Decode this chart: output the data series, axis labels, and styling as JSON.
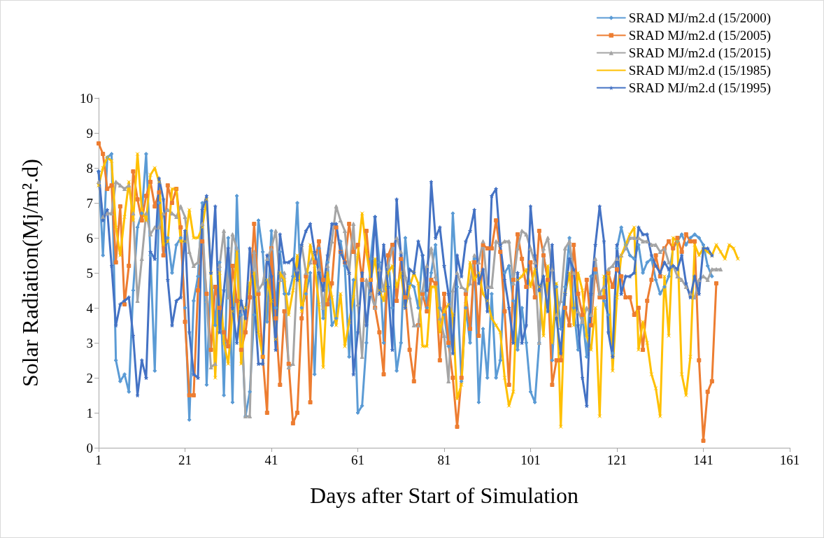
{
  "chart_data": {
    "type": "line",
    "xlabel": "Days after Start of Simulation",
    "ylabel": "Solar Radiation(Mj/m².d)",
    "xlim": [
      1,
      161
    ],
    "xticks": [
      1,
      21,
      41,
      61,
      81,
      101,
      121,
      141,
      161
    ],
    "ylim": [
      0,
      10
    ],
    "yticks": [
      0,
      1,
      2,
      3,
      4,
      5,
      6,
      7,
      8,
      9,
      10
    ],
    "grid": false,
    "legend": "top right",
    "x": [
      1,
      2,
      3,
      4,
      5,
      6,
      7,
      8,
      9,
      10,
      11,
      12,
      13,
      14,
      15,
      16,
      17,
      18,
      19,
      20,
      21,
      22,
      23,
      24,
      25,
      26,
      27,
      28,
      29,
      30,
      31,
      32,
      33,
      34,
      35,
      36,
      37,
      38,
      39,
      40,
      41,
      42,
      43,
      44,
      45,
      46,
      47,
      48,
      49,
      50,
      51,
      52,
      53,
      54,
      55,
      56,
      57,
      58,
      59,
      60,
      61,
      62,
      63,
      64,
      65,
      66,
      67,
      68,
      69,
      70,
      71,
      72,
      73,
      74,
      75,
      76,
      77,
      78,
      79,
      80,
      81,
      82,
      83,
      84,
      85,
      86,
      87,
      88,
      89,
      90,
      91,
      92,
      93,
      94,
      95,
      96,
      97,
      98,
      99,
      100,
      101,
      102,
      103,
      104,
      105,
      106,
      107,
      108,
      109,
      110,
      111,
      112,
      113,
      114,
      115,
      116,
      117,
      118,
      119,
      120,
      121,
      122,
      123,
      124,
      125,
      126,
      127,
      128,
      129,
      130,
      131,
      132,
      133,
      134,
      135,
      136,
      137,
      138,
      139,
      140,
      141,
      142,
      143,
      144,
      145,
      146,
      147,
      148,
      149
    ],
    "series": [
      {
        "name": "SRAD MJ/m2.d (15/2000)",
        "color": "#5b9bd5",
        "marker": "diamond",
        "values": [
          7.9,
          5.5,
          8.3,
          8.4,
          2.5,
          1.9,
          2.1,
          1.6,
          4.5,
          6.3,
          6.7,
          8.4,
          5.5,
          2.2,
          7.0,
          5.5,
          6.0,
          5.0,
          5.8,
          6.0,
          4.0,
          0.8,
          4.2,
          4.9,
          7.0,
          1.8,
          5.0,
          3.5,
          5.3,
          1.5,
          6.0,
          1.3,
          7.2,
          3.8,
          0.9,
          1.6,
          3.8,
          6.5,
          5.6,
          3.6,
          6.2,
          4.0,
          5.6,
          4.4,
          4.4,
          4.9,
          7.0,
          4.0,
          4.4,
          5.0,
          2.1,
          5.7,
          3.7,
          5.3,
          3.5,
          3.7,
          5.9,
          5.2,
          2.6,
          4.8,
          1.0,
          1.2,
          3.0,
          5.4,
          6.6,
          5.3,
          3.0,
          5.5,
          4.0,
          2.2,
          3.0,
          6.0,
          4.7,
          4.6,
          4.0,
          5.5,
          4.0,
          5.0,
          5.8,
          4.0,
          3.8,
          2.9,
          6.7,
          4.6,
          1.9,
          4.0,
          3.0,
          5.4,
          1.3,
          3.4,
          2.0,
          4.4,
          2.0,
          2.5,
          5.0,
          5.2,
          4.2,
          2.8,
          4.0,
          3.0,
          1.6,
          1.3,
          3.0,
          5.5,
          4.8,
          2.5,
          4.6,
          3.4,
          4.6,
          6.0,
          4.0,
          2.8,
          3.8,
          2.6,
          4.9,
          5.0,
          4.4,
          4.2,
          3.8,
          2.7,
          5.7,
          6.3,
          5.8,
          5.5,
          5.4,
          5.8,
          5.0,
          5.3,
          5.4,
          4.8,
          4.4,
          4.6,
          4.9,
          5.7,
          5.9,
          6.1,
          5.8,
          6.0,
          6.1,
          6.0,
          5.8,
          5.2,
          4.9,
          null,
          null,
          null,
          null,
          null,
          null
        ]
      },
      {
        "name": "SRAD MJ/m2.d (15/2005)",
        "color": "#ed7d31",
        "marker": "square",
        "values": [
          8.7,
          8.4,
          7.4,
          7.5,
          5.3,
          6.9,
          4.1,
          5.2,
          7.9,
          7.1,
          6.5,
          7.2,
          7.6,
          6.9,
          7.3,
          5.5,
          7.5,
          7.0,
          7.4,
          6.3,
          3.6,
          1.5,
          1.5,
          4.5,
          5.9,
          4.4,
          2.8,
          4.6,
          4.0,
          3.3,
          2.9,
          5.2,
          4.2,
          2.8,
          3.3,
          4.3,
          6.4,
          4.4,
          2.6,
          1.0,
          5.7,
          3.7,
          1.8,
          3.9,
          2.4,
          0.7,
          1.0,
          3.7,
          4.9,
          1.3,
          5.3,
          5.9,
          4.8,
          4.1,
          4.7,
          6.3,
          5.6,
          5.3,
          6.4,
          5.6,
          5.8,
          4.8,
          6.2,
          4.8,
          4.0,
          3.3,
          2.1,
          5.5,
          5.8,
          4.2,
          5.4,
          4.3,
          2.8,
          1.9,
          3.5,
          4.4,
          3.9,
          4.8,
          4.7,
          2.5,
          4.4,
          3.0,
          2.0,
          0.6,
          2.0,
          4.4,
          3.4,
          5.3,
          3.2,
          5.8,
          5.7,
          5.7,
          6.5,
          5.6,
          3.9,
          1.8,
          4.8,
          6.1,
          5.4,
          4.6,
          5.3,
          4.3,
          6.2,
          5.5,
          4.8,
          1.8,
          2.5,
          2.5,
          4.0,
          3.5,
          5.8,
          4.4,
          3.8,
          4.8,
          3.5,
          5.1,
          4.3,
          4.3,
          5.0,
          4.6,
          5.1,
          4.9,
          4.3,
          4.3,
          3.8,
          4.0,
          2.8,
          4.2,
          4.8,
          5.5,
          4.9,
          5.7,
          5.9,
          5.7,
          6.0,
          5.6,
          6.1,
          5.9,
          5.9,
          2.5,
          0.2,
          1.6,
          1.9,
          4.7,
          null,
          null,
          null,
          null,
          null
        ]
      },
      {
        "name": "SRAD MJ/m2.d (15/2015)",
        "color": "#a5a5a5",
        "marker": "triangle",
        "values": [
          7.6,
          6.6,
          6.7,
          6.7,
          7.6,
          7.5,
          7.4,
          7.5,
          6.7,
          4.2,
          5.4,
          6.7,
          6.1,
          6.3,
          6.3,
          6.7,
          6.8,
          6.7,
          6.6,
          6.9,
          6.6,
          5.6,
          5.2,
          5.3,
          6.4,
          4.2,
          2.3,
          2.4,
          5.2,
          6.2,
          4.3,
          6.1,
          5.7,
          4.0,
          0.9,
          0.9,
          5.6,
          4.5,
          4.7,
          5.4,
          5.7,
          6.2,
          4.8,
          5.0,
          2.3,
          2.4,
          5.1,
          5.8,
          5.0,
          5.3,
          5.6,
          5.1,
          4.0,
          5.2,
          5.9,
          6.9,
          6.5,
          6.2,
          5.0,
          6.4,
          4.1,
          2.6,
          4.8,
          4.4,
          4.0,
          5.1,
          4.5,
          5.2,
          5.7,
          6.0,
          5.6,
          4.9,
          4.3,
          3.5,
          3.5,
          4.5,
          5.2,
          5.7,
          4.9,
          3.7,
          3.2,
          1.9,
          4.5,
          5.0,
          4.6,
          4.5,
          4.7,
          5.5,
          5.3,
          5.9,
          4.6,
          4.6,
          5.9,
          5.8,
          5.9,
          5.9,
          4.7,
          5.7,
          6.2,
          6.1,
          5.7,
          5.3,
          3.0,
          5.7,
          6.0,
          5.1,
          3.8,
          4.2,
          5.7,
          5.9,
          5.0,
          3.9,
          3.6,
          4.0,
          3.8,
          5.4,
          4.4,
          4.6,
          5.1,
          5.2,
          5.4,
          5.5,
          5.7,
          6.0,
          6.0,
          6.0,
          5.9,
          5.9,
          5.8,
          5.8,
          5.6,
          5.7,
          5.3,
          5.2,
          4.9,
          4.8,
          4.6,
          4.4,
          4.3,
          4.8,
          4.9,
          4.8,
          5.1,
          5.1,
          5.1,
          null,
          null,
          null,
          null
        ]
      },
      {
        "name": "SRAD MJ/m2.d (15/1985)",
        "color": "#ffc000",
        "marker": "cross",
        "values": [
          7.5,
          8.0,
          8.3,
          8.2,
          6.3,
          5.5,
          6.6,
          7.6,
          6.5,
          8.4,
          6.8,
          6.5,
          7.8,
          8.0,
          7.6,
          5.8,
          5.9,
          7.4,
          7.4,
          5.9,
          5.9,
          6.8,
          6.0,
          6.0,
          6.3,
          7.1,
          5.0,
          2.0,
          5.0,
          3.0,
          2.4,
          3.9,
          5.6,
          2.4,
          4.0,
          4.7,
          5.0,
          3.3,
          2.6,
          4.8,
          4.2,
          3.1,
          5.0,
          4.8,
          3.8,
          4.5,
          5.5,
          3.9,
          4.6,
          5.8,
          5.2,
          4.1,
          2.3,
          5.0,
          4.3,
          3.5,
          4.4,
          2.9,
          3.6,
          4.3,
          5.5,
          6.7,
          5.6,
          4.8,
          5.4,
          4.5,
          4.2,
          5.0,
          5.2,
          4.6,
          5.0,
          4.0,
          4.6,
          5.0,
          4.7,
          2.9,
          2.9,
          4.6,
          4.6,
          3.3,
          3.9,
          4.1,
          3.8,
          1.4,
          1.8,
          4.1,
          5.3,
          4.8,
          5.0,
          4.4,
          4.2,
          3.7,
          3.5,
          3.3,
          2.0,
          1.2,
          1.6,
          4.8,
          4.9,
          5.1,
          4.6,
          5.1,
          4.6,
          3.2,
          5.2,
          3.0,
          4.7,
          0.6,
          4.4,
          5.0,
          3.5,
          5.0,
          4.5,
          3.2,
          2.8,
          4.0,
          0.9,
          4.9,
          5.0,
          2.2,
          4.3,
          5.5,
          5.8,
          6.1,
          6.3,
          2.8,
          3.6,
          3.0,
          2.1,
          1.7,
          0.9,
          4.9,
          3.2,
          6.0,
          5.9,
          2.1,
          1.5,
          2.6,
          5.8,
          5.5,
          5.7,
          5.6,
          5.5,
          5.8,
          5.6,
          5.4,
          5.8,
          5.7,
          5.4
        ]
      },
      {
        "name": "SRAD MJ/m2.d (15/1995)",
        "color": "#4472c4",
        "marker": "star",
        "values": [
          7.9,
          6.5,
          6.8,
          5.2,
          3.5,
          4.1,
          4.2,
          4.3,
          3.2,
          1.5,
          2.5,
          2.0,
          5.6,
          5.4,
          7.7,
          7.1,
          4.8,
          3.5,
          4.2,
          4.3,
          6.2,
          3.3,
          2.1,
          2.0,
          6.8,
          7.2,
          5.0,
          6.9,
          3.3,
          4.5,
          5.7,
          4.0,
          3.0,
          4.2,
          3.7,
          5.7,
          4.3,
          2.4,
          2.4,
          5.5,
          4.9,
          2.8,
          6.1,
          5.3,
          5.3,
          5.4,
          4.8,
          5.8,
          6.2,
          6.4,
          5.6,
          5.0,
          4.5,
          5.5,
          6.4,
          6.4,
          5.6,
          5.3,
          5.0,
          2.1,
          3.3,
          5.0,
          3.5,
          4.5,
          6.6,
          4.4,
          5.8,
          4.6,
          2.8,
          7.1,
          5.5,
          4.0,
          5.1,
          5.0,
          5.9,
          5.5,
          4.5,
          7.6,
          6.0,
          6.3,
          5.2,
          4.4,
          2.7,
          5.5,
          4.9,
          5.9,
          6.2,
          6.8,
          4.7,
          5.1,
          3.9,
          7.2,
          7.4,
          5.8,
          4.8,
          4.0,
          3.0,
          5.0,
          3.0,
          3.5,
          6.9,
          5.5,
          4.5,
          4.9,
          3.9,
          5.8,
          3.7,
          2.7,
          4.4,
          5.4,
          5.1,
          3.5,
          2.0,
          1.2,
          4.4,
          5.8,
          6.9,
          5.9,
          3.3,
          2.6,
          5.8,
          4.4,
          4.9,
          4.9,
          5.0,
          6.3,
          6.1,
          6.1,
          5.5,
          5.2,
          5.0,
          5.3,
          5.1,
          5.2,
          5.1,
          5.5,
          4.7,
          4.3,
          4.9,
          4.4,
          5.7,
          5.7,
          5.5,
          null,
          null,
          null,
          null,
          null,
          null
        ]
      }
    ]
  }
}
